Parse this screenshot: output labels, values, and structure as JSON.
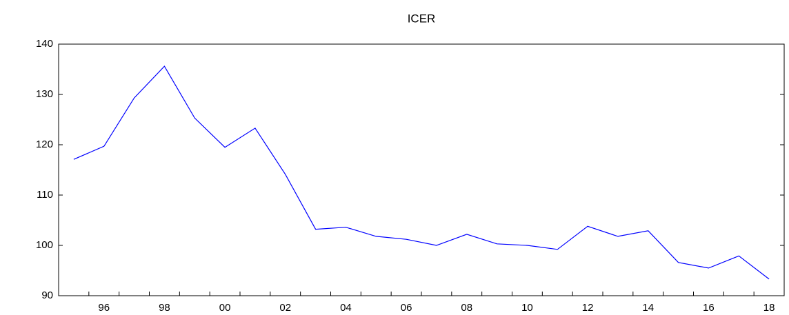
{
  "chart_data": {
    "type": "line",
    "title": "ICER",
    "categories": [
      null,
      "96",
      null,
      "98",
      null,
      "00",
      null,
      "02",
      null,
      "04",
      null,
      "06",
      null,
      "08",
      null,
      "10",
      null,
      "12",
      null,
      "14",
      null,
      "16",
      null,
      "18"
    ],
    "series": [
      {
        "name": "ICER",
        "color": "#0000ff",
        "values": [
          117.1,
          119.7,
          129.3,
          135.6,
          125.3,
          119.5,
          123.3,
          114.1,
          103.2,
          103.6,
          101.8,
          101.2,
          100.0,
          102.2,
          100.3,
          100.0,
          99.2,
          103.8,
          101.8,
          102.9,
          96.6,
          95.5,
          97.9,
          93.3
        ]
      }
    ],
    "ylim": [
      90,
      140
    ],
    "yticks": [
      90,
      100,
      110,
      120,
      130,
      140
    ],
    "grid": false
  }
}
